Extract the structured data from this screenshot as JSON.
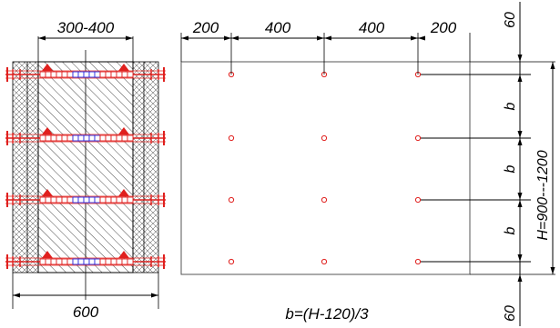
{
  "section": {
    "top_width_label": "300-400",
    "bottom_width_label": "600"
  },
  "elevation": {
    "spacing_labels": [
      "200",
      "400",
      "400",
      "200"
    ],
    "height_label": "H=900---1200",
    "vertical_labels": [
      "60",
      "b",
      "b",
      "b",
      "60"
    ],
    "formula": "b=(H-120)/3"
  },
  "colors": {
    "bolt": "#e0201e",
    "tie": "#2a2adf"
  }
}
